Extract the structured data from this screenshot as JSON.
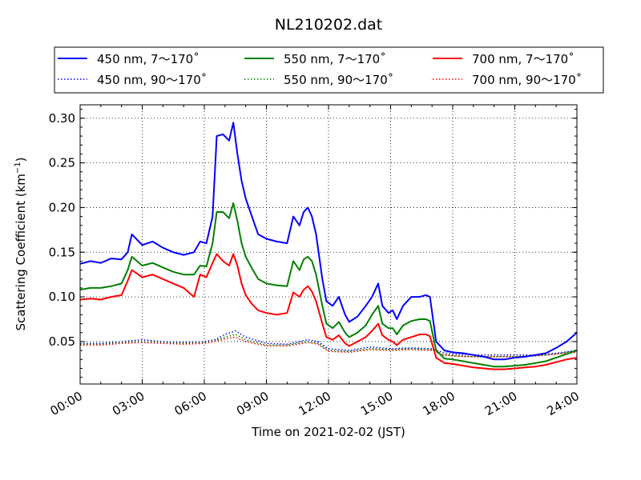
{
  "chart_data": {
    "type": "line",
    "title": "NL210202.dat",
    "xlabel": "Time on 2021-02-02 (JST)",
    "ylabel_main": "Scattering Coefficient (km",
    "ylabel_sup": "−1",
    "ylabel_tail": ")",
    "xlim": [
      0,
      24
    ],
    "ylim": [
      0.0025,
      0.315
    ],
    "grid": true,
    "legend_position": "top",
    "x_ticks": [
      {
        "value": 0,
        "label": "00:00"
      },
      {
        "value": 3,
        "label": "03:00"
      },
      {
        "value": 6,
        "label": "06:00"
      },
      {
        "value": 9,
        "label": "09:00"
      },
      {
        "value": 12,
        "label": "12:00"
      },
      {
        "value": 15,
        "label": "15:00"
      },
      {
        "value": 18,
        "label": "18:00"
      },
      {
        "value": 21,
        "label": "21:00"
      },
      {
        "value": 24,
        "label": "24:00"
      }
    ],
    "y_ticks": [
      {
        "value": 0.05,
        "label": "0.05"
      },
      {
        "value": 0.1,
        "label": "0.10"
      },
      {
        "value": 0.15,
        "label": "0.15"
      },
      {
        "value": 0.2,
        "label": "0.20"
      },
      {
        "value": 0.25,
        "label": "0.25"
      },
      {
        "value": 0.3,
        "label": "0.30"
      }
    ],
    "series": [
      {
        "name": "450 nm, 7～170˚",
        "color": "#0000ff",
        "style": "solid",
        "x": [
          0,
          0.5,
          1,
          1.5,
          2,
          2.3,
          2.5,
          3,
          3.5,
          4,
          4.5,
          5,
          5.5,
          5.8,
          6.1,
          6.4,
          6.6,
          6.9,
          7.2,
          7.4,
          7.6,
          7.8,
          8.0,
          8.3,
          8.6,
          9.0,
          9.5,
          10.0,
          10.3,
          10.6,
          10.8,
          11.0,
          11.2,
          11.4,
          11.7,
          11.9,
          12.2,
          12.5,
          12.8,
          13.0,
          13.4,
          13.8,
          14.1,
          14.4,
          14.6,
          14.9,
          15.1,
          15.3,
          15.6,
          16.0,
          16.4,
          16.7,
          16.9,
          17.2,
          17.6,
          18.0,
          18.5,
          19.0,
          19.5,
          20.0,
          20.5,
          21.0,
          21.5,
          22.0,
          22.5,
          23.0,
          23.5,
          24.0
        ],
        "y": [
          0.137,
          0.14,
          0.138,
          0.143,
          0.142,
          0.15,
          0.17,
          0.158,
          0.162,
          0.155,
          0.15,
          0.147,
          0.15,
          0.162,
          0.16,
          0.19,
          0.28,
          0.282,
          0.275,
          0.295,
          0.26,
          0.23,
          0.21,
          0.19,
          0.17,
          0.165,
          0.162,
          0.16,
          0.19,
          0.18,
          0.195,
          0.2,
          0.19,
          0.17,
          0.12,
          0.095,
          0.09,
          0.1,
          0.08,
          0.072,
          0.078,
          0.09,
          0.1,
          0.115,
          0.09,
          0.082,
          0.085,
          0.075,
          0.09,
          0.1,
          0.1,
          0.102,
          0.1,
          0.05,
          0.04,
          0.038,
          0.037,
          0.035,
          0.033,
          0.03,
          0.03,
          0.032,
          0.033,
          0.035,
          0.037,
          0.043,
          0.05,
          0.06
        ]
      },
      {
        "name": "450 nm, 90～170˚",
        "color": "#0000ff",
        "style": "dotted",
        "x": [
          0,
          1,
          2,
          3,
          4,
          5,
          6,
          6.5,
          7,
          7.5,
          8,
          9,
          10,
          11,
          11.5,
          12,
          13,
          14,
          15,
          16,
          17,
          17.5,
          18,
          19,
          20,
          21,
          22,
          23,
          24
        ],
        "y": [
          0.048,
          0.048,
          0.05,
          0.052,
          0.05,
          0.049,
          0.05,
          0.052,
          0.058,
          0.062,
          0.055,
          0.048,
          0.047,
          0.052,
          0.05,
          0.042,
          0.04,
          0.044,
          0.042,
          0.043,
          0.042,
          0.038,
          0.036,
          0.035,
          0.035,
          0.035,
          0.035,
          0.037,
          0.04
        ]
      },
      {
        "name": "550 nm, 7～170˚",
        "color": "#008000",
        "style": "solid",
        "x": [
          0,
          0.5,
          1,
          1.5,
          2,
          2.3,
          2.5,
          3,
          3.5,
          4,
          4.5,
          5,
          5.5,
          5.8,
          6.1,
          6.4,
          6.6,
          6.9,
          7.2,
          7.4,
          7.6,
          7.8,
          8.0,
          8.3,
          8.6,
          9.0,
          9.5,
          10.0,
          10.3,
          10.6,
          10.8,
          11.0,
          11.2,
          11.4,
          11.7,
          11.9,
          12.2,
          12.5,
          12.8,
          13.0,
          13.4,
          13.8,
          14.1,
          14.4,
          14.6,
          14.9,
          15.1,
          15.3,
          15.6,
          16.0,
          16.4,
          16.7,
          16.9,
          17.2,
          17.6,
          18.0,
          18.5,
          19.0,
          19.5,
          20.0,
          20.5,
          21.0,
          21.5,
          22.0,
          22.5,
          23.0,
          23.5,
          24.0
        ],
        "y": [
          0.108,
          0.11,
          0.11,
          0.112,
          0.115,
          0.13,
          0.145,
          0.135,
          0.138,
          0.133,
          0.128,
          0.125,
          0.125,
          0.135,
          0.134,
          0.16,
          0.195,
          0.195,
          0.188,
          0.205,
          0.185,
          0.16,
          0.145,
          0.132,
          0.12,
          0.115,
          0.113,
          0.112,
          0.14,
          0.13,
          0.142,
          0.145,
          0.14,
          0.125,
          0.09,
          0.07,
          0.065,
          0.072,
          0.06,
          0.055,
          0.06,
          0.068,
          0.08,
          0.09,
          0.07,
          0.065,
          0.065,
          0.058,
          0.068,
          0.073,
          0.075,
          0.075,
          0.073,
          0.04,
          0.031,
          0.03,
          0.028,
          0.026,
          0.024,
          0.022,
          0.022,
          0.023,
          0.024,
          0.026,
          0.028,
          0.032,
          0.036,
          0.04
        ]
      },
      {
        "name": "550 nm, 90～170˚",
        "color": "#008000",
        "style": "dotted",
        "x": [
          0,
          1,
          2,
          3,
          4,
          5,
          6,
          6.5,
          7,
          7.5,
          8,
          9,
          10,
          11,
          11.5,
          12,
          13,
          14,
          15,
          16,
          17,
          17.5,
          18,
          19,
          20,
          21,
          22,
          23,
          24
        ],
        "y": [
          0.047,
          0.047,
          0.049,
          0.05,
          0.049,
          0.048,
          0.049,
          0.051,
          0.055,
          0.058,
          0.052,
          0.046,
          0.046,
          0.05,
          0.048,
          0.04,
          0.039,
          0.042,
          0.041,
          0.042,
          0.041,
          0.036,
          0.034,
          0.033,
          0.033,
          0.033,
          0.034,
          0.036,
          0.04
        ]
      },
      {
        "name": "700 nm, 7～170˚",
        "color": "#ff0000",
        "style": "solid",
        "x": [
          0,
          0.5,
          1,
          1.5,
          2,
          2.3,
          2.5,
          3,
          3.5,
          4,
          4.5,
          5,
          5.5,
          5.8,
          6.1,
          6.4,
          6.6,
          6.9,
          7.2,
          7.4,
          7.6,
          7.8,
          8.0,
          8.3,
          8.6,
          9.0,
          9.5,
          10.0,
          10.3,
          10.6,
          10.8,
          11.0,
          11.2,
          11.4,
          11.7,
          11.9,
          12.2,
          12.5,
          12.8,
          13.0,
          13.4,
          13.8,
          14.1,
          14.4,
          14.6,
          14.9,
          15.1,
          15.3,
          15.6,
          16.0,
          16.4,
          16.7,
          16.9,
          17.2,
          17.6,
          18.0,
          18.5,
          19.0,
          19.5,
          20.0,
          20.5,
          21.0,
          21.5,
          22.0,
          22.5,
          23.0,
          23.5,
          24.0
        ],
        "y": [
          0.097,
          0.098,
          0.097,
          0.1,
          0.102,
          0.118,
          0.13,
          0.122,
          0.125,
          0.12,
          0.115,
          0.11,
          0.1,
          0.125,
          0.122,
          0.138,
          0.148,
          0.14,
          0.135,
          0.148,
          0.135,
          0.115,
          0.102,
          0.092,
          0.085,
          0.082,
          0.08,
          0.082,
          0.105,
          0.1,
          0.108,
          0.112,
          0.106,
          0.095,
          0.07,
          0.055,
          0.052,
          0.057,
          0.048,
          0.045,
          0.05,
          0.055,
          0.062,
          0.07,
          0.057,
          0.052,
          0.05,
          0.046,
          0.052,
          0.055,
          0.058,
          0.058,
          0.056,
          0.032,
          0.026,
          0.025,
          0.023,
          0.021,
          0.02,
          0.019,
          0.019,
          0.02,
          0.021,
          0.022,
          0.024,
          0.027,
          0.03,
          0.032
        ]
      },
      {
        "name": "700 nm, 90～170˚",
        "color": "#ff0000",
        "style": "dotted",
        "x": [
          0,
          1,
          2,
          3,
          4,
          5,
          6,
          6.5,
          7,
          7.5,
          8,
          9,
          10,
          11,
          11.5,
          12,
          13,
          14,
          15,
          16,
          17,
          17.5,
          18,
          19,
          20,
          21,
          22,
          23,
          24
        ],
        "y": [
          0.046,
          0.046,
          0.048,
          0.049,
          0.048,
          0.047,
          0.048,
          0.05,
          0.053,
          0.055,
          0.05,
          0.045,
          0.045,
          0.049,
          0.047,
          0.039,
          0.038,
          0.041,
          0.04,
          0.041,
          0.04,
          0.035,
          0.034,
          0.033,
          0.033,
          0.033,
          0.034,
          0.036,
          0.038
        ]
      }
    ]
  }
}
